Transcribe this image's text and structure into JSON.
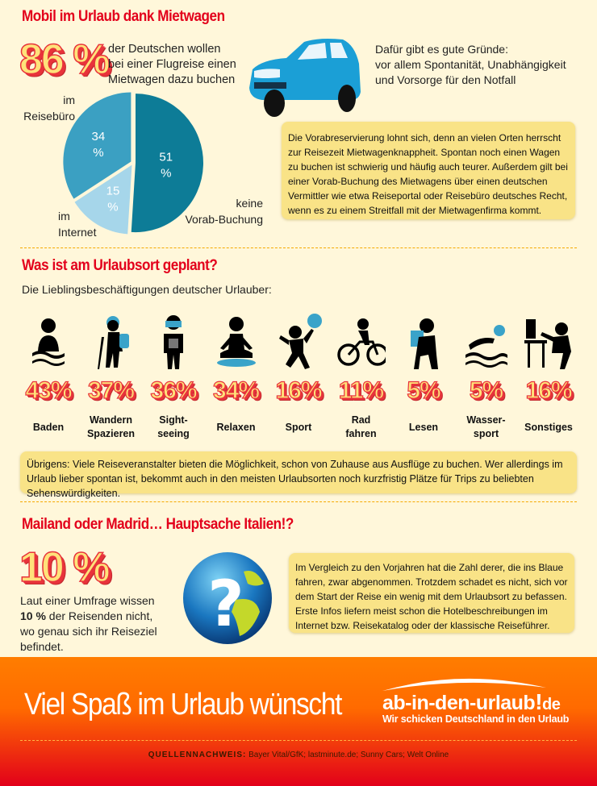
{
  "section1": {
    "title": "Mobil im Urlaub dank Mietwagen",
    "big_value": "86 %",
    "big_text": [
      "der Deutschen wollen",
      "bei einer Flugreise einen",
      "Mietwagen dazu buchen"
    ],
    "reasons": [
      "Dafür gibt es gute Gründe:",
      "vor allem Spontanität, Unabhängigkeit",
      "und Vorsorge für den Notfall"
    ],
    "box": "Die Vorabreservierung lohnt sich, denn an vielen Orten herrscht zur Reisezeit Mietwagenknappheit. Spontan noch einen Wagen zu buchen ist schwierig und häufig auch teurer. Außerdem gilt bei einer Vorab-Buchung des Mietwagens über einen deutschen Vermittler wie etwa Reiseportal oder Reisebüro deutsches Recht, wenn es zu einem Streitfall mit der Mietwagenfirma kommt.",
    "car_color": "#1b9fd6"
  },
  "chart_data": {
    "type": "pie",
    "series": [
      {
        "name": "keine Vorab-Buchung",
        "value": 51,
        "label": "51 %",
        "color": "#0d7c97"
      },
      {
        "name": "im Internet",
        "value": 15,
        "label": "15 %",
        "color": "#a6d6ea"
      },
      {
        "name": "im Reisebüro",
        "value": 34,
        "label": "34 %",
        "color": "#3ba0c2"
      }
    ],
    "labels": {
      "keine": [
        "keine",
        "Vorab-Buchung"
      ],
      "internet": [
        "im",
        "Internet"
      ],
      "reisebuero": [
        "im",
        "Reisebüro"
      ]
    }
  },
  "section2": {
    "title": "Was ist am Urlaubsort geplant?",
    "subtitle": "Die Lieblingsbeschäftigungen deutscher Urlauber:",
    "items": [
      {
        "icon": "swimming-icon",
        "value": "43%",
        "label": [
          "Baden",
          ""
        ]
      },
      {
        "icon": "hiking-icon",
        "value": "37%",
        "label": [
          "Wandern",
          "Spazieren"
        ]
      },
      {
        "icon": "camera-tourist-icon",
        "value": "36%",
        "label": [
          "Sight-",
          "seeing"
        ]
      },
      {
        "icon": "meditation-icon",
        "value": "34%",
        "label": [
          "Relaxen",
          ""
        ]
      },
      {
        "icon": "ball-sport-icon",
        "value": "16%",
        "label": [
          "Sport",
          ""
        ]
      },
      {
        "icon": "bicycle-icon",
        "value": "11%",
        "label": [
          "Rad",
          "fahren"
        ]
      },
      {
        "icon": "reading-icon",
        "value": "5%",
        "label": [
          "Lesen",
          ""
        ]
      },
      {
        "icon": "water-sport-icon",
        "value": "5%",
        "label": [
          "Wasser-",
          "sport"
        ]
      },
      {
        "icon": "computer-user-icon",
        "value": "16%",
        "label": [
          "Sonstiges",
          ""
        ]
      }
    ],
    "box": "Übrigens: Viele Reiseveranstalter bieten die Möglichkeit, schon von Zuhause aus Ausflüge zu buchen. Wer allerdings im Urlaub lieber spontan ist, bekommt auch in den meisten Urlaubsorten noch kurzfristig Plätze für Trips zu beliebten Sehenswürdigkeiten.",
    "accent": "#3aa3c9"
  },
  "section3": {
    "title": "Mailand oder Madrid… Hauptsache Italien!?",
    "big_value": "10 %",
    "text_1": "Laut einer Umfrage wissen",
    "text_bold": "10 %",
    "text_2": " der Reisenden nicht, wo genau sich ihr Reiseziel befindet.",
    "box": "Im Vergleich zu den Vorjahren hat die Zahl derer, die ins Blaue fahren, zwar abgenommen. Trotzdem schadet es nicht, sich vor dem Start der Reise ein wenig mit dem Urlaubsort zu befassen. Erste Infos liefern meist schon die Hotelbeschreibungen im Internet bzw. Reisekatalog oder der klassische Reiseführer.",
    "globe_mark": "?"
  },
  "footer": {
    "slogan": "Viel Spaß im Urlaub wünscht",
    "logo": "ab-in-den-urlaub!.de",
    "logo_main": "ab-in-den-urlaub",
    "logo_tld": "de",
    "tagline": "Wir schicken Deutschland in den Urlaub",
    "sources_label": "QUELLENNACHWEIS:",
    "sources": " Bayer Vital/GfK; lastminute.de; Sunny Cars; Welt Online"
  }
}
